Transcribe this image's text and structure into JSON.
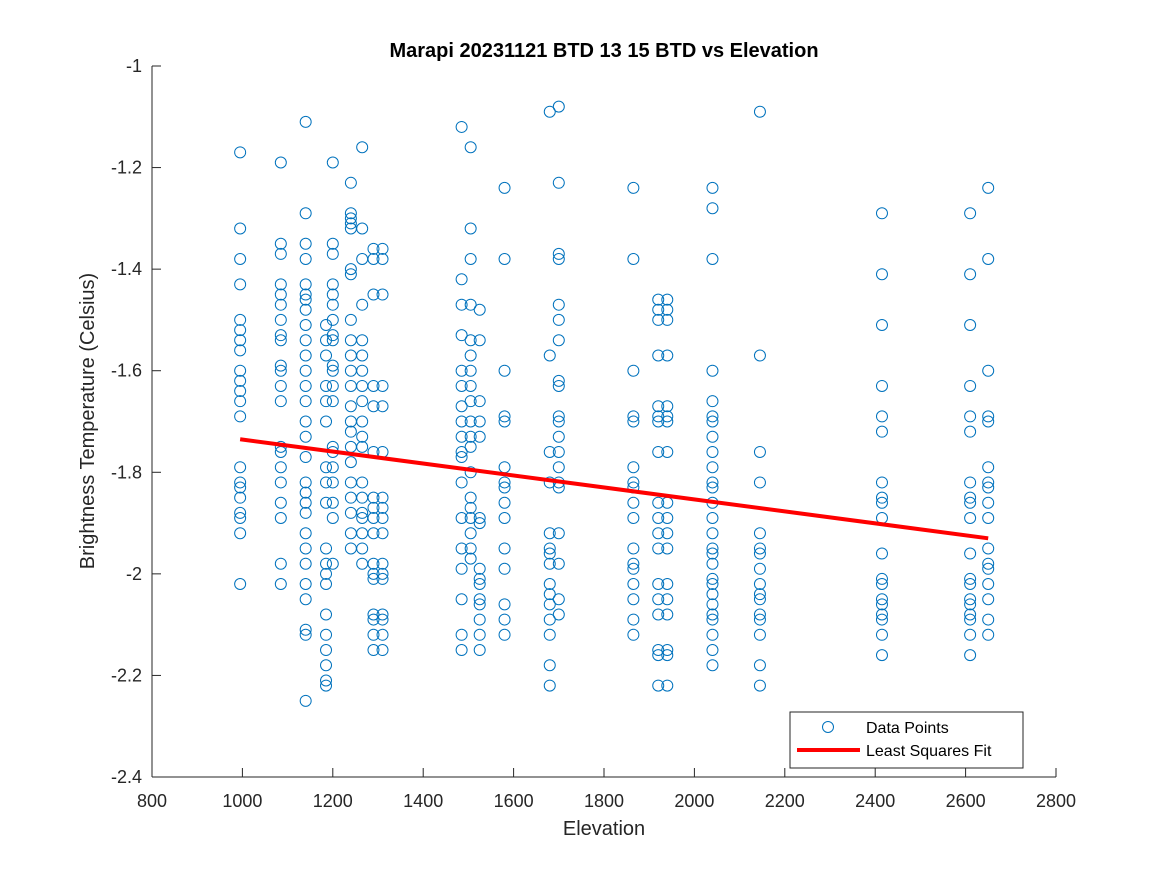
{
  "chart_data": {
    "type": "scatter",
    "title": "Marapi 20231121 BTD 13 15 BTD vs Elevation",
    "xlabel": "Elevation",
    "ylabel": "Brightness Temperature (Celsius)",
    "xlim": [
      800,
      2800
    ],
    "ylim": [
      -2.4,
      -1
    ],
    "xticks": [
      800,
      1000,
      1200,
      1400,
      1600,
      1800,
      2000,
      2200,
      2400,
      2600,
      2800
    ],
    "yticks": [
      -2.4,
      -2.2,
      -2,
      -1.8,
      -1.6,
      -1.4,
      -1.2,
      -1
    ],
    "xtick_labels": [
      "800",
      "1000",
      "1200",
      "1400",
      "1600",
      "1800",
      "2000",
      "2200",
      "2400",
      "2600",
      "2800"
    ],
    "ytick_labels": [
      "-2.4",
      "-2.2",
      "-2",
      "-1.8",
      "-1.6",
      "-1.4",
      "-1.2",
      "-1"
    ],
    "grid": false,
    "legend_position": "bottom-right",
    "series": [
      {
        "name": "Data Points",
        "kind": "scatter",
        "marker": "open-circle",
        "color": "#0072BD",
        "columns": [
          {
            "x": 995,
            "y": [
              -1.17,
              -1.32,
              -1.38,
              -1.43,
              -1.5,
              -1.52,
              -1.54,
              -1.56,
              -1.6,
              -1.62,
              -1.64,
              -1.66,
              -1.69,
              -1.79,
              -1.82,
              -1.83,
              -1.85,
              -1.88,
              -1.89,
              -1.92,
              -2.02
            ]
          },
          {
            "x": 1085,
            "y": [
              -1.19,
              -1.35,
              -1.37,
              -1.43,
              -1.45,
              -1.47,
              -1.5,
              -1.53,
              -1.54,
              -1.59,
              -1.6,
              -1.63,
              -1.66,
              -1.75,
              -1.76,
              -1.79,
              -1.82,
              -1.86,
              -1.89,
              -1.98,
              -2.02
            ]
          },
          {
            "x": 1140,
            "y": [
              -1.11,
              -1.29,
              -1.35,
              -1.38,
              -1.43,
              -1.45,
              -1.46,
              -1.48,
              -1.51,
              -1.54,
              -1.57,
              -1.6,
              -1.63,
              -1.66,
              -1.7,
              -1.73,
              -1.77,
              -1.82,
              -1.84,
              -1.86,
              -1.88,
              -1.92,
              -1.95,
              -1.98,
              -2.02,
              -2.05,
              -2.11,
              -2.12,
              -2.25
            ]
          },
          {
            "x": 1185,
            "y": [
              -1.51,
              -1.54,
              -1.57,
              -1.63,
              -1.66,
              -1.7,
              -1.79,
              -1.82,
              -1.86,
              -1.95,
              -1.98,
              -2.0,
              -2.02,
              -2.08,
              -2.12,
              -2.15,
              -2.18,
              -2.21,
              -2.22
            ]
          },
          {
            "x": 1200,
            "y": [
              -1.19,
              -1.35,
              -1.37,
              -1.43,
              -1.45,
              -1.47,
              -1.5,
              -1.53,
              -1.54,
              -1.59,
              -1.6,
              -1.63,
              -1.66,
              -1.75,
              -1.76,
              -1.79,
              -1.82,
              -1.86,
              -1.89,
              -1.98
            ]
          },
          {
            "x": 1240,
            "y": [
              -1.23,
              -1.29,
              -1.3,
              -1.31,
              -1.32,
              -1.4,
              -1.41,
              -1.5,
              -1.54,
              -1.57,
              -1.6,
              -1.63,
              -1.67,
              -1.7,
              -1.72,
              -1.75,
              -1.78,
              -1.82,
              -1.85,
              -1.88,
              -1.92,
              -1.95
            ]
          },
          {
            "x": 1265,
            "y": [
              -1.16,
              -1.32,
              -1.38,
              -1.47,
              -1.54,
              -1.57,
              -1.6,
              -1.63,
              -1.66,
              -1.7,
              -1.73,
              -1.75,
              -1.82,
              -1.85,
              -1.88,
              -1.89,
              -1.92,
              -1.95,
              -1.98
            ]
          },
          {
            "x": 1290,
            "y": [
              -1.36,
              -1.38,
              -1.45,
              -1.63,
              -1.67,
              -1.76,
              -1.85,
              -1.87,
              -1.89,
              -1.92,
              -1.98,
              -2.0,
              -2.01,
              -2.08,
              -2.09,
              -2.12,
              -2.15
            ]
          },
          {
            "x": 1310,
            "y": [
              -1.36,
              -1.38,
              -1.45,
              -1.63,
              -1.67,
              -1.76,
              -1.85,
              -1.87,
              -1.89,
              -1.92,
              -1.98,
              -2.0,
              -2.01,
              -2.08,
              -2.09,
              -2.12,
              -2.15
            ]
          },
          {
            "x": 1485,
            "y": [
              -1.12,
              -1.42,
              -1.47,
              -1.53,
              -1.6,
              -1.63,
              -1.67,
              -1.7,
              -1.73,
              -1.76,
              -1.77,
              -1.82,
              -1.89,
              -1.95,
              -1.99,
              -2.05,
              -2.12,
              -2.15
            ]
          },
          {
            "x": 1505,
            "y": [
              -1.16,
              -1.32,
              -1.38,
              -1.47,
              -1.54,
              -1.57,
              -1.6,
              -1.63,
              -1.66,
              -1.7,
              -1.73,
              -1.75,
              -1.8,
              -1.85,
              -1.87,
              -1.89,
              -1.92,
              -1.95,
              -1.97
            ]
          },
          {
            "x": 1525,
            "y": [
              -1.48,
              -1.54,
              -1.66,
              -1.7,
              -1.73,
              -1.89,
              -1.9,
              -1.99,
              -2.01,
              -2.02,
              -2.05,
              -2.06,
              -2.09,
              -2.12,
              -2.15
            ]
          },
          {
            "x": 1580,
            "y": [
              -1.24,
              -1.38,
              -1.6,
              -1.69,
              -1.7,
              -1.79,
              -1.82,
              -1.83,
              -1.86,
              -1.89,
              -1.95,
              -1.99,
              -2.06,
              -2.09,
              -2.12
            ]
          },
          {
            "x": 1680,
            "y": [
              -1.09,
              -1.57,
              -1.76,
              -1.82,
              -1.92,
              -1.95,
              -1.96,
              -1.98,
              -2.02,
              -2.04,
              -2.06,
              -2.09,
              -2.12,
              -2.18,
              -2.22
            ]
          },
          {
            "x": 1700,
            "y": [
              -1.08,
              -1.23,
              -1.37,
              -1.38,
              -1.47,
              -1.5,
              -1.54,
              -1.62,
              -1.63,
              -1.69,
              -1.7,
              -1.73,
              -1.76,
              -1.79,
              -1.82,
              -1.83,
              -1.92,
              -1.98,
              -2.05,
              -2.08
            ]
          },
          {
            "x": 1865,
            "y": [
              -1.24,
              -1.38,
              -1.6,
              -1.69,
              -1.7,
              -1.79,
              -1.82,
              -1.83,
              -1.86,
              -1.89,
              -1.95,
              -1.98,
              -1.99,
              -2.02,
              -2.05,
              -2.09,
              -2.12
            ]
          },
          {
            "x": 1920,
            "y": [
              -1.46,
              -1.48,
              -1.5,
              -1.57,
              -1.67,
              -1.69,
              -1.7,
              -1.76,
              -1.86,
              -1.89,
              -1.92,
              -1.95,
              -2.02,
              -2.05,
              -2.08,
              -2.15,
              -2.16,
              -2.22
            ]
          },
          {
            "x": 1940,
            "y": [
              -1.46,
              -1.48,
              -1.5,
              -1.57,
              -1.67,
              -1.69,
              -1.7,
              -1.76,
              -1.86,
              -1.89,
              -1.92,
              -1.95,
              -2.02,
              -2.05,
              -2.08,
              -2.15,
              -2.16,
              -2.22
            ]
          },
          {
            "x": 2040,
            "y": [
              -1.24,
              -1.28,
              -1.38,
              -1.6,
              -1.66,
              -1.69,
              -1.7,
              -1.73,
              -1.76,
              -1.79,
              -1.82,
              -1.83,
              -1.86,
              -1.89,
              -1.92,
              -1.95,
              -1.96,
              -1.98,
              -2.01,
              -2.02,
              -2.04,
              -2.06,
              -2.08,
              -2.09,
              -2.12,
              -2.15,
              -2.18
            ]
          },
          {
            "x": 2145,
            "y": [
              -1.09,
              -1.57,
              -1.76,
              -1.82,
              -1.92,
              -1.95,
              -1.96,
              -1.99,
              -2.02,
              -2.04,
              -2.05,
              -2.08,
              -2.09,
              -2.12,
              -2.18,
              -2.22
            ]
          },
          {
            "x": 2415,
            "y": [
              -1.29,
              -1.41,
              -1.51,
              -1.63,
              -1.69,
              -1.72,
              -1.82,
              -1.85,
              -1.86,
              -1.89,
              -1.96,
              -2.01,
              -2.02,
              -2.05,
              -2.06,
              -2.08,
              -2.09,
              -2.12,
              -2.16
            ]
          },
          {
            "x": 2610,
            "y": [
              -1.29,
              -1.41,
              -1.51,
              -1.63,
              -1.69,
              -1.72,
              -1.82,
              -1.85,
              -1.86,
              -1.89,
              -1.96,
              -2.01,
              -2.02,
              -2.05,
              -2.06,
              -2.08,
              -2.09,
              -2.12,
              -2.16
            ]
          },
          {
            "x": 2650,
            "y": [
              -1.24,
              -1.38,
              -1.6,
              -1.69,
              -1.7,
              -1.79,
              -1.82,
              -1.83,
              -1.86,
              -1.89,
              -1.95,
              -1.98,
              -1.99,
              -2.02,
              -2.05,
              -2.09,
              -2.12
            ]
          }
        ]
      },
      {
        "name": "Least Squares Fit",
        "kind": "line",
        "color": "#FF0000",
        "x": [
          995,
          2650
        ],
        "y": [
          -1.735,
          -1.93
        ]
      }
    ]
  }
}
